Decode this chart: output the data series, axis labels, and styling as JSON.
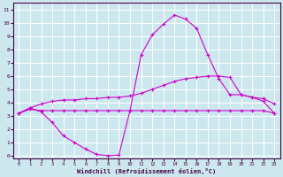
{
  "title": "",
  "xlabel": "Windchill (Refroidissement éolien,°C)",
  "ylabel": "",
  "bg_color": "#cce8ee",
  "grid_color": "#ffffff",
  "line_color": "#cc00cc",
  "x_ticks": [
    0,
    1,
    2,
    3,
    4,
    5,
    6,
    7,
    8,
    9,
    10,
    11,
    12,
    13,
    14,
    15,
    16,
    17,
    18,
    19,
    20,
    21,
    22,
    23
  ],
  "y_ticks": [
    0,
    1,
    2,
    3,
    4,
    5,
    6,
    7,
    8,
    9,
    10,
    11
  ],
  "ylim": [
    -0.2,
    11.5
  ],
  "xlim": [
    -0.5,
    23.5
  ],
  "line1_x": [
    0,
    1,
    2,
    3,
    4,
    5,
    6,
    7,
    8,
    9,
    10,
    11,
    12,
    13,
    14,
    15,
    16,
    17,
    18,
    19,
    20,
    21,
    22,
    23
  ],
  "line1_y": [
    3.2,
    3.5,
    3.4,
    3.4,
    3.4,
    3.4,
    3.4,
    3.4,
    3.4,
    3.4,
    3.4,
    3.4,
    3.4,
    3.4,
    3.4,
    3.4,
    3.4,
    3.4,
    3.4,
    3.4,
    3.4,
    3.4,
    3.4,
    3.2
  ],
  "line2_x": [
    0,
    1,
    2,
    3,
    4,
    5,
    6,
    7,
    8,
    9,
    10,
    11,
    12,
    13,
    14,
    15,
    16,
    17,
    18,
    19,
    20,
    21,
    22,
    23
  ],
  "line2_y": [
    3.2,
    3.6,
    3.9,
    4.1,
    4.2,
    4.2,
    4.3,
    4.3,
    4.4,
    4.4,
    4.5,
    4.7,
    5.0,
    5.3,
    5.6,
    5.8,
    5.9,
    6.0,
    6.0,
    5.9,
    4.6,
    4.4,
    4.3,
    3.9
  ],
  "line3_x": [
    0,
    1,
    2,
    3,
    4,
    5,
    6,
    7,
    8,
    9,
    10,
    11,
    12,
    13,
    14,
    15,
    16,
    17,
    18,
    19,
    20,
    21,
    22,
    23
  ],
  "line3_y": [
    3.2,
    3.6,
    3.3,
    2.5,
    1.5,
    1.0,
    0.5,
    0.1,
    0.0,
    0.05,
    3.4,
    7.6,
    9.1,
    9.9,
    10.6,
    10.3,
    9.6,
    7.6,
    5.8,
    4.6,
    4.6,
    4.4,
    4.1,
    3.2
  ]
}
